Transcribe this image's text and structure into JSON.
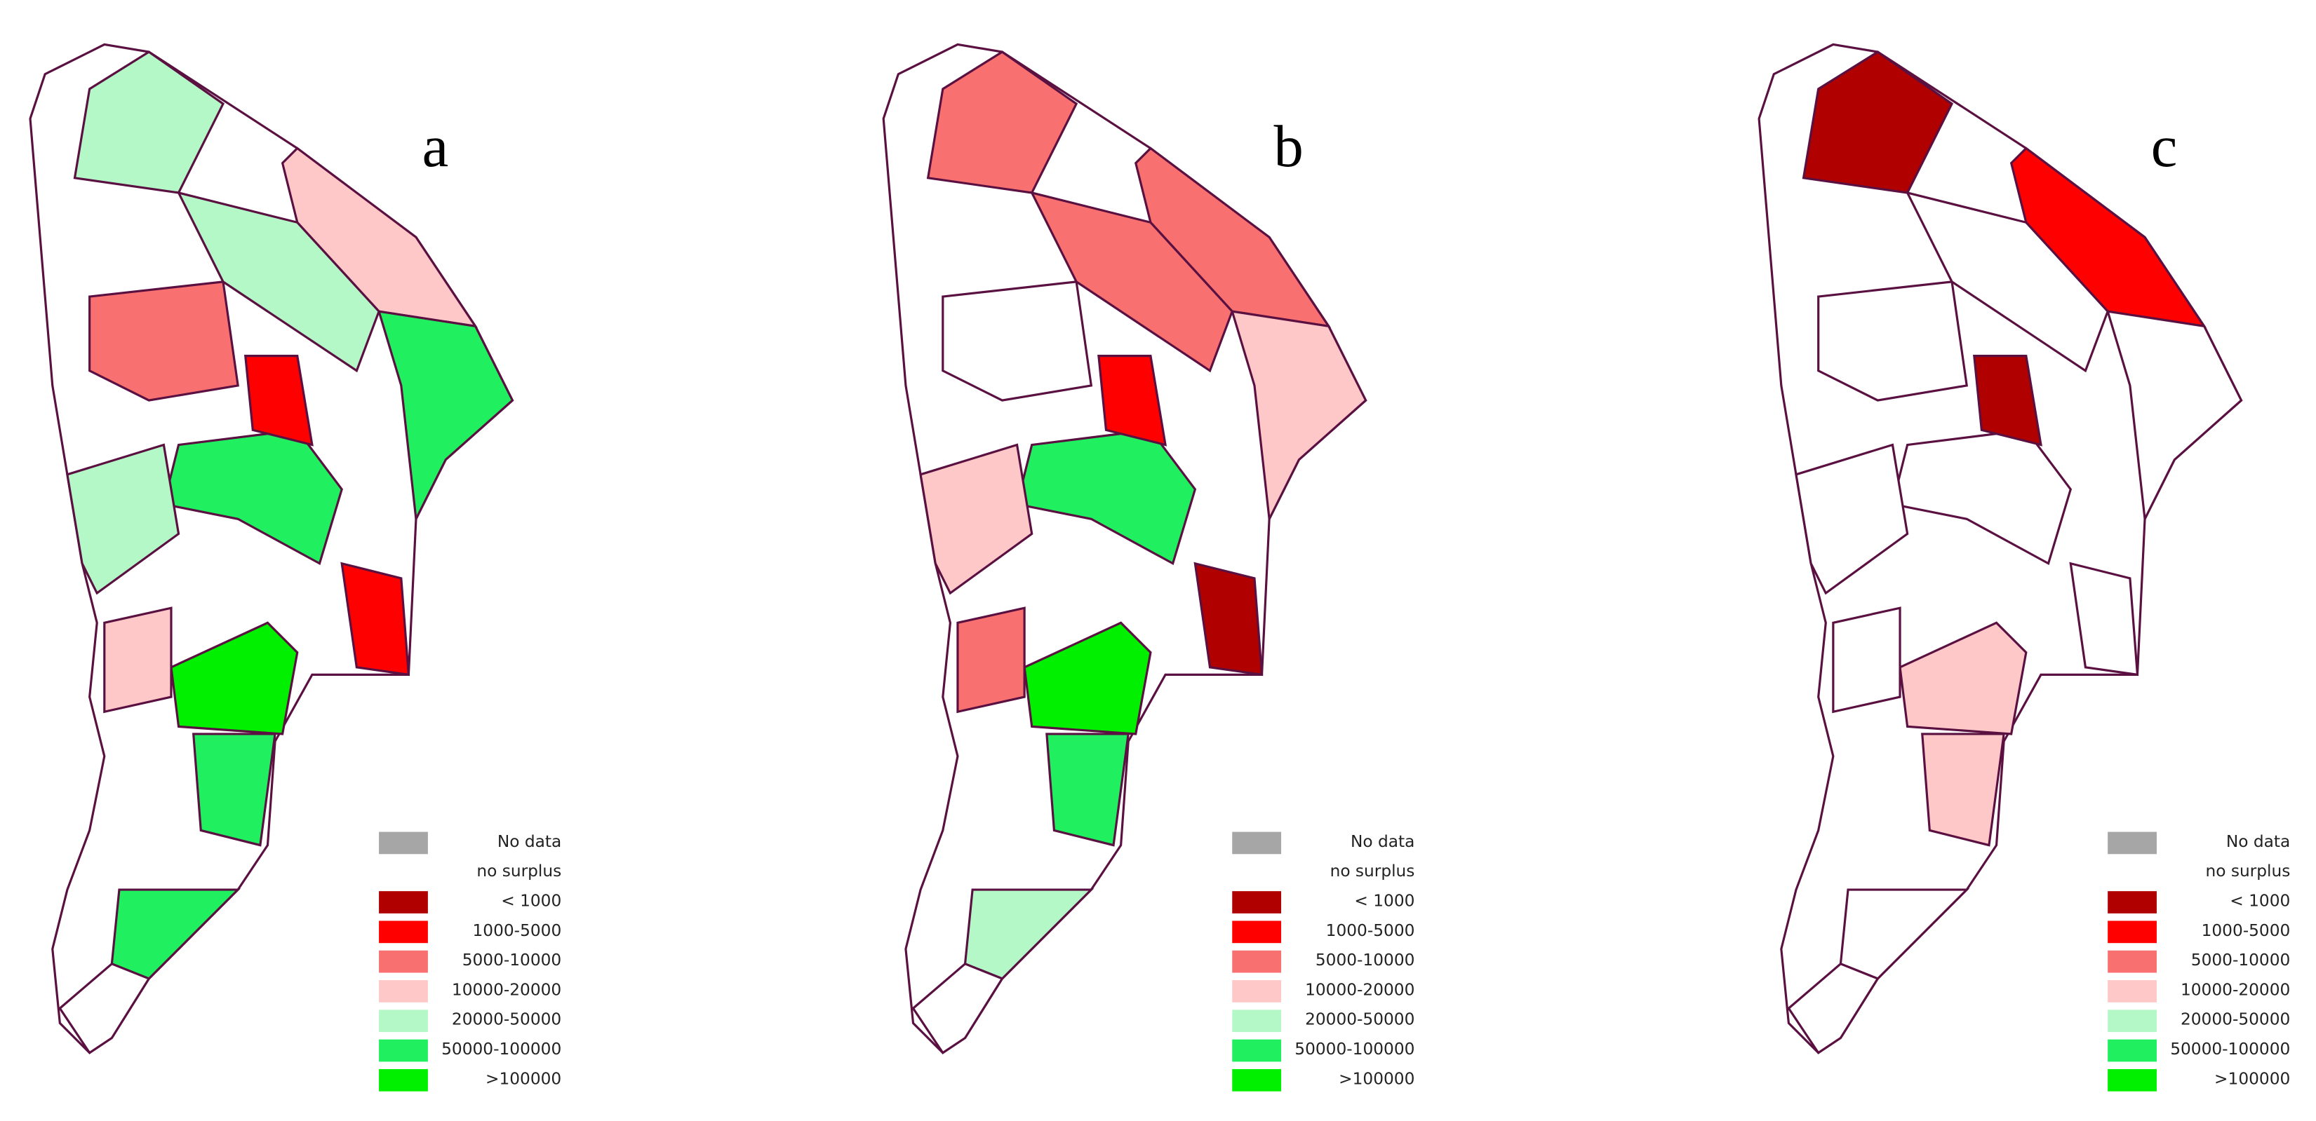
{
  "panels": [
    {
      "label": "a"
    },
    {
      "label": "b"
    },
    {
      "label": "c"
    }
  ],
  "legend": {
    "items": [
      {
        "label": "No data",
        "color": "#a6a6a6"
      },
      {
        "label": "no surplus",
        "color": "#ffffff"
      },
      {
        "label": "< 1000",
        "color": "#b00000"
      },
      {
        "label": "1000-5000",
        "color": "#ff0000"
      },
      {
        "label": "5000-10000",
        "color": "#f87070"
      },
      {
        "label": "10000-20000",
        "color": "#ffc8c8"
      },
      {
        "label": "20000-50000",
        "color": "#b4f8c8"
      },
      {
        "label": "50000-100000",
        "color": "#20f060"
      },
      {
        "label": ">100000",
        "color": "#00f000"
      }
    ]
  }
}
